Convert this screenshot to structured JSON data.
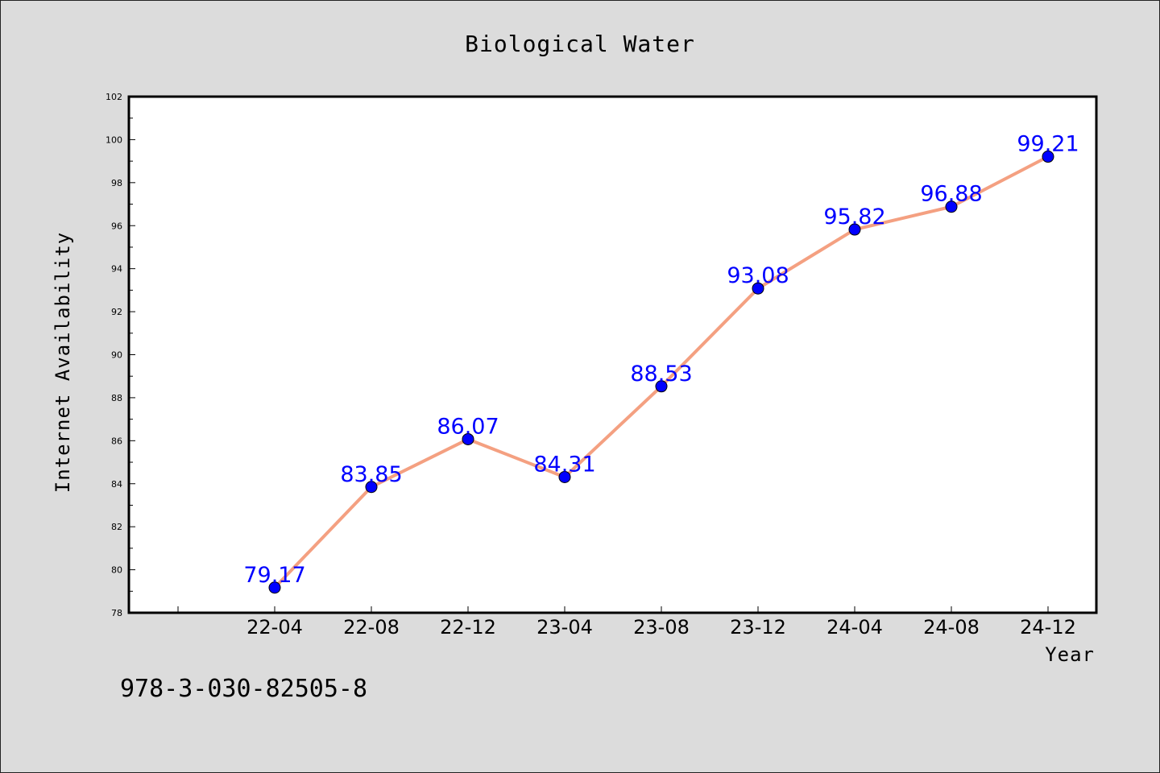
{
  "chart_data": {
    "type": "line",
    "title": "Biological Water",
    "xlabel": "Year",
    "ylabel": "Internet Availability",
    "categories": [
      "22-04",
      "22-08",
      "22-12",
      "23-04",
      "23-08",
      "23-12",
      "24-04",
      "24-08",
      "24-12"
    ],
    "series": [
      {
        "values": [
          79.17,
          83.85,
          86.07,
          84.31,
          88.53,
          93.08,
          95.82,
          96.88,
          99.21
        ],
        "data_labels": [
          "79.17",
          "83.85",
          "86.07",
          "84.31",
          "88.53",
          "93.08",
          "95.82",
          "96.88",
          "99.21"
        ]
      }
    ],
    "ylim": [
      78,
      102
    ],
    "yticks": [
      78,
      80,
      82,
      84,
      86,
      88,
      90,
      92,
      94,
      96,
      98,
      100,
      102
    ],
    "grid": false,
    "legend": "none",
    "colors": {
      "line": "#f4a081",
      "marker": "#0000ff",
      "label": "#0000ff"
    }
  },
  "footer_text": "978-3-030-82505-8"
}
